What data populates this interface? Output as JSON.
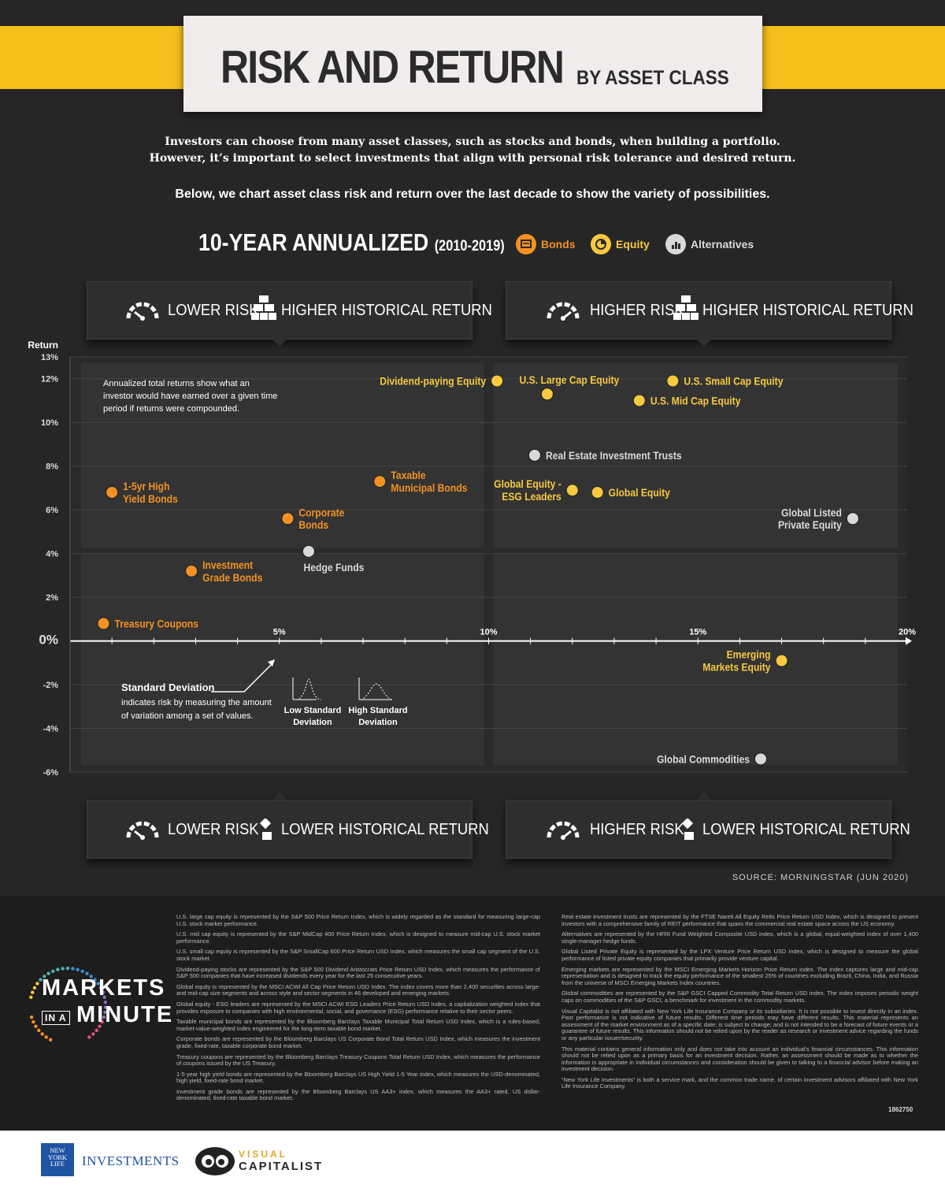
{
  "header": {
    "title": "RISK AND RETURN",
    "subtitle": "BY ASSET CLASS"
  },
  "intro": {
    "line1": "Investors can choose from many asset classes, such as stocks and bonds, when building a portfolio.",
    "line2": "However, it’s important to select investments that align with personal risk tolerance and desired return.",
    "line3": "Below, we chart asset class risk and return over the last decade to show the variety of possibilities."
  },
  "chart_heading": {
    "main": "10-YEAR ANNUALIZED",
    "period": "(2010-2019)"
  },
  "legend": [
    {
      "label": "Bonds",
      "color": "#f39222",
      "icon": "bond-icon"
    },
    {
      "label": "Equity",
      "color": "#f7c940",
      "icon": "pie-chart-icon"
    },
    {
      "label": "Alternatives",
      "color": "#d9d9d9",
      "icon": "bar-chart-icon"
    }
  ],
  "quadrants": {
    "top_left": {
      "risk": "LOWER RISK",
      "return": "HIGHER HISTORICAL RETURN"
    },
    "top_right": {
      "risk": "HIGHER RISK",
      "return": "HIGHER HISTORICAL RETURN"
    },
    "bottom_left": {
      "risk": "LOWER RISK",
      "return": "LOWER HISTORICAL RETURN"
    },
    "bottom_right": {
      "risk": "HIGHER RISK",
      "return": "LOWER HISTORICAL RETURN"
    }
  },
  "chart_data": {
    "type": "scatter",
    "ylabel": "Return",
    "xlim": [
      0,
      20
    ],
    "ylim": [
      -6,
      13
    ],
    "x_ticks": [
      "5%",
      "10%",
      "15%",
      "20%"
    ],
    "x_tick_values": [
      5,
      10,
      15,
      20
    ],
    "y_ticks": [
      "13%",
      "12%",
      "10%",
      "8%",
      "6%",
      "4%",
      "2%",
      "0%",
      "-2%",
      "-4%",
      "-6%"
    ],
    "y_tick_values": [
      13,
      12,
      10,
      8,
      6,
      4,
      2,
      0,
      -2,
      -4,
      -6
    ],
    "categories_colors": {
      "Bonds": "#f39222",
      "Equity": "#f7c940",
      "Alternatives": "#d9d9d9"
    },
    "points": [
      {
        "name": "Dividend-paying Equity",
        "category": "Equity",
        "x": 10.2,
        "y": 11.9,
        "label_side": "left"
      },
      {
        "name": "U.S. Large Cap Equity",
        "category": "Equity",
        "x": 11.4,
        "y": 11.3,
        "label_side": "above"
      },
      {
        "name": "U.S. Small Cap Equity",
        "category": "Equity",
        "x": 14.4,
        "y": 11.9,
        "label_side": "right"
      },
      {
        "name": "U.S. Mid Cap Equity",
        "category": "Equity",
        "x": 13.6,
        "y": 11.0,
        "label_side": "right"
      },
      {
        "name": "Real Estate Investment Trusts",
        "category": "Alternatives",
        "x": 11.1,
        "y": 8.5,
        "label_side": "right"
      },
      {
        "name": "Taxable\nMunicipal Bonds",
        "category": "Bonds",
        "x": 7.4,
        "y": 7.3,
        "label_side": "right"
      },
      {
        "name": "Global Equity -\nESG Leaders",
        "category": "Equity",
        "x": 12.0,
        "y": 6.9,
        "label_side": "left"
      },
      {
        "name": "Global Equity",
        "category": "Equity",
        "x": 12.6,
        "y": 6.8,
        "label_side": "right"
      },
      {
        "name": "1-5yr High\nYield Bonds",
        "category": "Bonds",
        "x": 1.0,
        "y": 6.8,
        "label_side": "right"
      },
      {
        "name": "Corporate\nBonds",
        "category": "Bonds",
        "x": 5.2,
        "y": 5.6,
        "label_side": "right"
      },
      {
        "name": "Global Listed\nPrivate Equity",
        "category": "Alternatives",
        "x": 18.7,
        "y": 5.6,
        "label_side": "left"
      },
      {
        "name": "Hedge Funds",
        "category": "Alternatives",
        "x": 5.7,
        "y": 4.1,
        "label_side": "below"
      },
      {
        "name": "Investment\nGrade Bonds",
        "category": "Bonds",
        "x": 2.9,
        "y": 3.2,
        "label_side": "right"
      },
      {
        "name": "Treasury Coupons",
        "category": "Bonds",
        "x": 0.8,
        "y": 0.8,
        "label_side": "right"
      },
      {
        "name": "Emerging\nMarkets Equity",
        "category": "Equity",
        "x": 17.0,
        "y": -0.9,
        "label_side": "left"
      },
      {
        "name": "Global Commodities",
        "category": "Alternatives",
        "x": 16.5,
        "y": -5.4,
        "label_side": "left"
      }
    ],
    "annotations": {
      "return_note": "Annualized total returns show what an investor would have earned over a given time period if returns were compounded.",
      "std_title": "Standard Deviation",
      "std_text": "indicates risk by measuring the amount of variation among a set of values.",
      "low_std": "Low Standard\nDeviation",
      "high_std": "High Standard\nDeviation"
    }
  },
  "source": "SOURCE: MORNINGSTAR (JUN 2020)",
  "footnotes": {
    "left": [
      "U.S. large cap equity is represented by the S&P 500 Price Return Index, which is widely regarded as the standard for measuring large-cap U.S. stock market performance.",
      "U.S. mid cap equity is represented by the S&P MidCap 400 Price Return Index, which is designed to measure mid-cap U.S. stock market performance.",
      "U.S. small cap equity is represented by the S&P SmallCap 600 Price Return USD Index, which measures the small cap segment of the U.S. stock market.",
      "Dividend-paying stocks are represented by the S&P 500 Dividend Aristocrats Price Return USD Index, which measures the performance of S&P 500 companies that have increased dividends every year for the last 25 consecutive years.",
      "Global equity is represented by the MSCI ACWI All Cap Price Return USD Index. The index covers more than 2,400 securities across large- and mid-cap size segments and across style and sector segments in 46 developed and emerging markets.",
      "Global equity - ESG leaders are represented by the MSCI ACWI ESG Leaders Price Return USD Index, a capitalization weighted index that provides exposure to companies with high environmental, social, and governance (ESG) performance relative to their sector peers.",
      "Taxable municipal bonds are represented by the Bloomberg Barclays Taxable Municipal Total Return USD Index, which is a rules-based, market-value-weighted index engineered for the long-term taxable bond market.",
      "Corporate bonds are represented by the Bloomberg Barclays US Corporate Bond Total Return USD Index, which measures the investment grade, fixed-rate, taxable corporate bond market.",
      "Treasury coupons are represented by the Bloomberg Barclays Treasury Coupons Total Return USD Index, which measures the performance of coupons issued by the US Treasury.",
      "1-5 year high yield bonds are represented by the Bloomberg Barclays US High Yield 1-5 Year index, which measures the USD-denominated, high yield, fixed-rate bond market.",
      "Investment grade bonds are represented by the Bloomberg Barclays US AA3+ index, which measures the AA3+ rated, US dollar-denominated, fixed-rate taxable bond market."
    ],
    "right": [
      "Real estate investment trusts are represented by the FTSE Nareit All Equity Reits Price Return USD Index, which is designed to present investors with a comprehensive family of REIT performance that spans the commercial real estate space across the US economy.",
      "Alternatives are represented by the HFRI Fund Weighted Composite USD index, which is a global, equal-weighted index of over 1,400 single-manager hedge funds.",
      "Global Listed Private Equity is represented by the LPX Venture Price Return USD index, which is designed to measure the global performance of listed private equity companies that primarily provide venture capital.",
      "Emerging markets are represented by the MSCI Emerging Markets Horizon Price Return index. The index captures large and mid-cap representation and is designed to track the equity performance of the smallest 25% of countries excluding Brazil, China, India, and Russia from the universe of MSCI Emerging Markets Index countries.",
      "Global commodities are represented by the S&P GSCI Capped Commodity Total Return USD index. The index imposes periodic weight caps on commodities of the S&P GSCI, a benchmark for investment in the commodity markets.",
      "Visual Capitalist is not affiliated with New York Life Insurance Company or its subsidiaries. It is not possible to invest directly in an index. Past performance is not indicative of future results. Different time periods may have different results. This material represents an assessment of the market environment as of a specific date; is subject to change; and is not intended to be a forecast of future events or a guarantee of future results. This information should not be relied upon by the reader as research or investment advice regarding the funds or any particular issuer/security.",
      "This material contains general information only and does not take into account an individual’s financial circumstances. This information should not be relied upon as a primary basis for an investment decision. Rather, an assessment should be made as to whether the information is appropriate in individual circumstances and consideration should be given to talking to a financial advisor before making an investment decision.",
      "“New York Life Investments” is both a service mark, and the common trade name, of certain investment advisors affiliated with New York Life Insurance Company."
    ],
    "code": "1862750"
  },
  "logo": {
    "line1": "MARKETS",
    "line2a": "IN A",
    "line2b": "MINUTE"
  },
  "brands": {
    "nyl_box": "NEW\nYORK\nLIFE",
    "nyl_text": "INVESTMENTS",
    "vc_top": "VISUAL",
    "vc_bottom": "CAPITALIST"
  }
}
